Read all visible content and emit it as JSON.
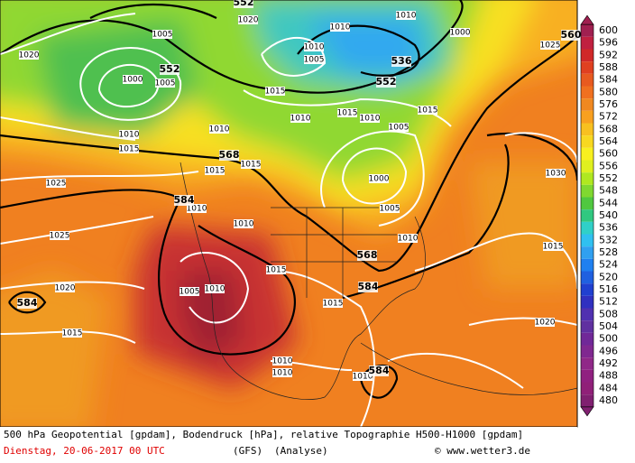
{
  "isobar_labels": [
    1020,
    1005,
    1000,
    1005,
    1010,
    1015,
    1020,
    1010,
    1005,
    1010,
    1010,
    1000,
    1025,
    1015,
    1010,
    1015,
    1010,
    1015,
    1005,
    1010,
    1015,
    1015,
    1000,
    1010,
    1005,
    1010,
    1010,
    1030,
    1025,
    1025,
    1015,
    1020,
    1015,
    1005,
    1010,
    1015,
    1015,
    1020,
    1010,
    1010,
    1010
  ],
  "geopotential_labels": [
    552,
    536,
    552,
    568,
    584,
    568,
    584,
    584,
    584,
    560,
    552
  ],
  "colorbar": {
    "levels": [
      600,
      596,
      592,
      588,
      584,
      580,
      576,
      572,
      568,
      564,
      560,
      556,
      552,
      548,
      544,
      540,
      536,
      532,
      528,
      524,
      520,
      516,
      512,
      508,
      504,
      500,
      496,
      492,
      488,
      484,
      480
    ],
    "colors": [
      "#a02050",
      "#c02040",
      "#d02828",
      "#e04020",
      "#e85a20",
      "#f07020",
      "#f08820",
      "#f8a020",
      "#f8c020",
      "#f8d820",
      "#f8f020",
      "#e0f020",
      "#b0e820",
      "#80d830",
      "#50c840",
      "#30c880",
      "#30d0c8",
      "#30c0f0",
      "#30a0f0",
      "#2080f0",
      "#2060e0",
      "#2040d0",
      "#3030c0",
      "#5030b0",
      "#6030a0",
      "#702898",
      "#802890",
      "#902888",
      "#902080",
      "#902078",
      "#802070"
    ]
  },
  "footer": {
    "line1": "500 hPa Geopotential [gpdam], Bodendruck [hPa], relative Topographie H500-H1000 [gpdam]",
    "date": "Dienstag, 20-06-2017  00 UTC",
    "model": "(GFS)",
    "run": "(Analyse)",
    "copyright": "© www.wetter3.de"
  }
}
